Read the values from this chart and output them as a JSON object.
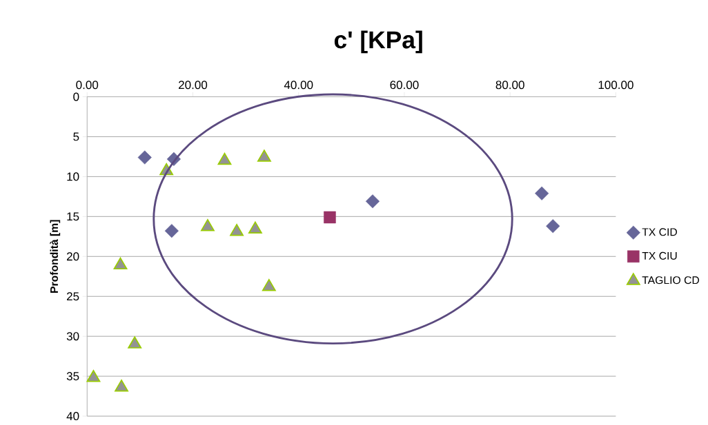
{
  "chart_data": {
    "type": "scatter",
    "title": "c' [KPa]",
    "ylabel": "Profondità [m]",
    "xlim": [
      0,
      100
    ],
    "ylim": [
      40,
      0
    ],
    "xticks": [
      {
        "value": 0,
        "label": "0.00"
      },
      {
        "value": 20,
        "label": "20.00"
      },
      {
        "value": 40,
        "label": "40.00"
      },
      {
        "value": 60,
        "label": "60.00"
      },
      {
        "value": 80,
        "label": "80.00"
      },
      {
        "value": 100,
        "label": "100.00"
      }
    ],
    "yticks": [
      0,
      5,
      10,
      15,
      20,
      25,
      30,
      35,
      40
    ],
    "grid": "y",
    "legend": "right",
    "series": [
      {
        "name": "TX CID",
        "color": "#666699",
        "marker": "diamond",
        "x": [
          10.9,
          16.4,
          16.0,
          54.0,
          86.0,
          88.1
        ],
        "values": [
          7.6,
          7.8,
          16.8,
          13.1,
          12.1,
          16.2
        ]
      },
      {
        "name": "TX CIU",
        "color": "#993366",
        "marker": "square",
        "x": [
          45.9
        ],
        "values": [
          15.1
        ]
      },
      {
        "name": "TAGLIO CD",
        "color": "#939393",
        "marker": "triangle",
        "x": [
          15.0,
          26.0,
          33.5,
          22.8,
          28.3,
          31.8,
          6.3,
          34.4,
          9.0,
          1.2,
          6.5
        ],
        "values": [
          9.3,
          8.0,
          7.6,
          16.3,
          16.9,
          16.6,
          21.1,
          23.8,
          31.0,
          35.2,
          36.4
        ]
      }
    ]
  }
}
